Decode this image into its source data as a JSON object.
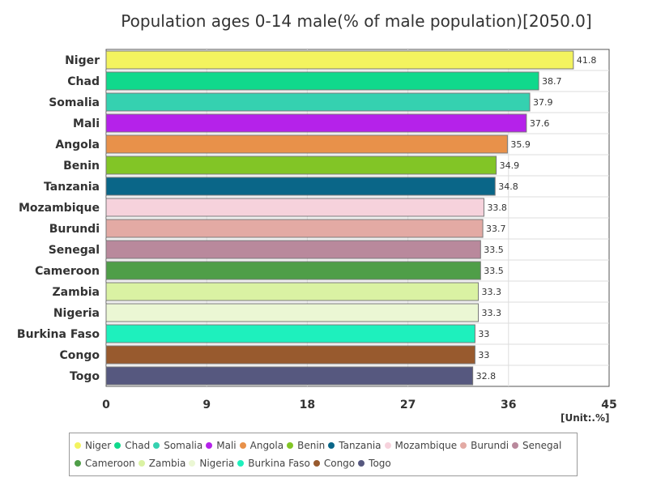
{
  "chart_data": {
    "type": "bar",
    "orientation": "horizontal",
    "title": "Population ages 0-14 male(% of male population)[2050.0]",
    "unit_label": "[Unit:.%]",
    "xlim": [
      0,
      45
    ],
    "ticks": [
      0,
      9,
      18,
      27,
      36,
      45
    ],
    "grid": true,
    "legend_position": "bottom",
    "categories": [
      "Niger",
      "Chad",
      "Somalia",
      "Mali",
      "Angola",
      "Benin",
      "Tanzania",
      "Mozambique",
      "Burundi",
      "Senegal",
      "Cameroon",
      "Zambia",
      "Nigeria",
      "Burkina Faso",
      "Congo",
      "Togo"
    ],
    "values": [
      41.8,
      38.7,
      37.9,
      37.6,
      35.9,
      34.9,
      34.8,
      33.8,
      33.7,
      33.5,
      33.5,
      33.3,
      33.3,
      33,
      33,
      32.8
    ],
    "value_labels": [
      "41.8",
      "38.7",
      "37.9",
      "37.6",
      "35.9",
      "34.9",
      "34.8",
      "33.8",
      "33.7",
      "33.5",
      "33.5",
      "33.3",
      "33.3",
      "33",
      "33",
      "32.8"
    ],
    "colors": [
      "#f3f35f",
      "#10d98c",
      "#35d1b0",
      "#b522ea",
      "#e8914a",
      "#82c526",
      "#0a6688",
      "#f6d2dc",
      "#e3aaa4",
      "#b9899c",
      "#4f9e48",
      "#daf2a3",
      "#ebf7d4",
      "#1ef0bd",
      "#985a2e",
      "#56587f"
    ]
  }
}
